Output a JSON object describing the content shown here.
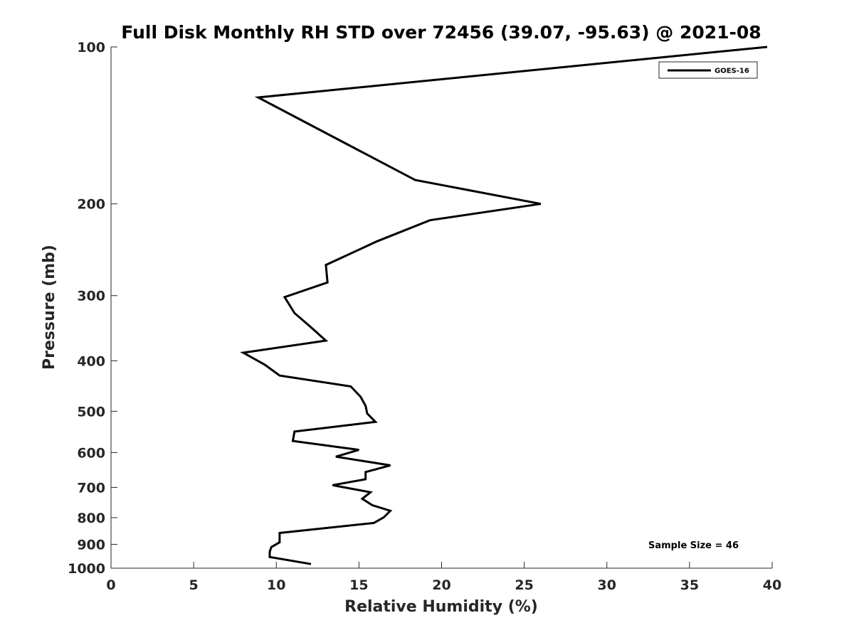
{
  "chart_data": {
    "type": "line",
    "title": "Full Disk Monthly RH STD over 72456 (39.07, -95.63) @ 2021-08",
    "xlabel": "Relative Humidity (%)",
    "ylabel": "Pressure (mb)",
    "xlim": [
      0,
      40
    ],
    "ylim": [
      100,
      1000
    ],
    "y_scale": "log",
    "y_reversed": true,
    "grid": false,
    "legend_position": "top-right",
    "x_ticks": [
      "0",
      "5",
      "10",
      "15",
      "20",
      "25",
      "30",
      "35",
      "40"
    ],
    "y_ticks": [
      "100",
      "200",
      "300",
      "400",
      "500",
      "600",
      "700",
      "800",
      "900",
      "1000"
    ],
    "annotation": "Sample Size = 46",
    "series": [
      {
        "name": "GOES-16",
        "color": "#000000",
        "points": [
          {
            "x": 39.7,
            "y": 100
          },
          {
            "x": 8.9,
            "y": 125
          },
          {
            "x": 18.4,
            "y": 180
          },
          {
            "x": 26.0,
            "y": 200
          },
          {
            "x": 19.3,
            "y": 215
          },
          {
            "x": 16.1,
            "y": 236
          },
          {
            "x": 13.0,
            "y": 262
          },
          {
            "x": 13.1,
            "y": 283
          },
          {
            "x": 10.5,
            "y": 302
          },
          {
            "x": 11.1,
            "y": 324
          },
          {
            "x": 12.1,
            "y": 345
          },
          {
            "x": 13.0,
            "y": 366
          },
          {
            "x": 8.0,
            "y": 386
          },
          {
            "x": 9.3,
            "y": 407
          },
          {
            "x": 10.2,
            "y": 427
          },
          {
            "x": 14.5,
            "y": 448
          },
          {
            "x": 15.1,
            "y": 469
          },
          {
            "x": 15.4,
            "y": 488
          },
          {
            "x": 15.5,
            "y": 505
          },
          {
            "x": 16.0,
            "y": 524
          },
          {
            "x": 11.1,
            "y": 547
          },
          {
            "x": 11.0,
            "y": 570
          },
          {
            "x": 15.0,
            "y": 593
          },
          {
            "x": 13.6,
            "y": 611
          },
          {
            "x": 16.9,
            "y": 635
          },
          {
            "x": 15.4,
            "y": 654
          },
          {
            "x": 15.4,
            "y": 675
          },
          {
            "x": 13.4,
            "y": 693
          },
          {
            "x": 15.7,
            "y": 715
          },
          {
            "x": 15.2,
            "y": 736
          },
          {
            "x": 15.8,
            "y": 757
          },
          {
            "x": 16.9,
            "y": 776
          },
          {
            "x": 16.5,
            "y": 799
          },
          {
            "x": 15.9,
            "y": 819
          },
          {
            "x": 10.2,
            "y": 856
          },
          {
            "x": 10.2,
            "y": 892
          },
          {
            "x": 9.7,
            "y": 911
          },
          {
            "x": 9.6,
            "y": 930
          },
          {
            "x": 9.6,
            "y": 952
          },
          {
            "x": 12.1,
            "y": 982
          }
        ]
      }
    ]
  }
}
